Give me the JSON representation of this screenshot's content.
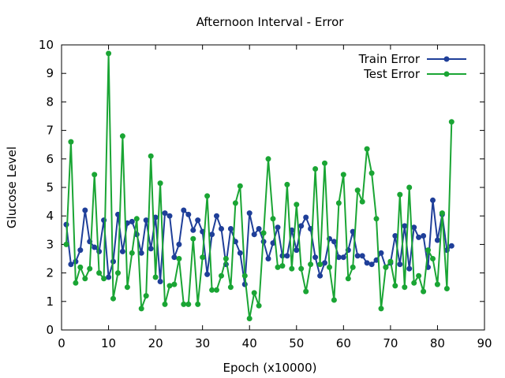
{
  "chart_data": {
    "type": "line",
    "title": "Afternoon Interval - Error",
    "xlabel": "Epoch (x10000)",
    "ylabel": "Glucose Level",
    "xlim": [
      0,
      90
    ],
    "ylim": [
      0,
      10
    ],
    "xticks": [
      0,
      10,
      20,
      30,
      40,
      50,
      60,
      70,
      80,
      90
    ],
    "yticks": [
      0,
      1,
      2,
      3,
      4,
      5,
      6,
      7,
      8,
      9,
      10
    ],
    "grid": false,
    "legend": "top-right",
    "series": [
      {
        "name": "Train Error",
        "color": "#1f3f99",
        "x": [
          1,
          2,
          3,
          4,
          5,
          6,
          7,
          8,
          9,
          10,
          11,
          12,
          13,
          14,
          15,
          16,
          17,
          18,
          19,
          20,
          21,
          22,
          23,
          24,
          25,
          26,
          27,
          28,
          29,
          30,
          31,
          32,
          33,
          34,
          35,
          36,
          37,
          38,
          39,
          40,
          41,
          42,
          43,
          44,
          45,
          46,
          47,
          48,
          49,
          50,
          51,
          52,
          53,
          54,
          55,
          56,
          57,
          58,
          59,
          60,
          61,
          62,
          63,
          64,
          65,
          66,
          67,
          68,
          69,
          70,
          71,
          72,
          73,
          74,
          75,
          76,
          77,
          78,
          79,
          80,
          81,
          82,
          83
        ],
        "y": [
          3.7,
          2.3,
          2.4,
          2.8,
          4.2,
          3.1,
          2.9,
          2.75,
          3.85,
          1.85,
          2.4,
          4.05,
          2.75,
          3.75,
          3.8,
          3.35,
          2.7,
          3.85,
          2.85,
          3.95,
          1.7,
          4.1,
          4.0,
          2.55,
          3.0,
          4.2,
          4.05,
          3.5,
          3.85,
          3.45,
          1.95,
          3.35,
          4.0,
          3.55,
          2.3,
          3.55,
          3.1,
          2.7,
          1.6,
          4.1,
          3.35,
          3.55,
          3.1,
          2.5,
          3.05,
          3.6,
          2.6,
          2.6,
          3.5,
          2.8,
          3.65,
          3.95,
          3.55,
          2.55,
          1.9,
          2.35,
          3.2,
          3.1,
          2.55,
          2.55,
          2.8,
          3.45,
          2.6,
          2.6,
          2.35,
          2.3,
          2.45,
          2.7,
          2.2,
          2.35,
          3.3,
          2.3,
          3.65,
          2.15,
          3.6,
          3.25,
          3.3,
          2.2,
          4.55,
          3.15,
          4.05,
          2.8,
          2.95
        ]
      },
      {
        "name": "Test Error",
        "color": "#1aa534",
        "x": [
          1,
          2,
          3,
          4,
          5,
          6,
          7,
          8,
          9,
          10,
          11,
          12,
          13,
          14,
          15,
          16,
          17,
          18,
          19,
          20,
          21,
          22,
          23,
          24,
          25,
          26,
          27,
          28,
          29,
          30,
          31,
          32,
          33,
          34,
          35,
          36,
          37,
          38,
          39,
          40,
          41,
          42,
          43,
          44,
          45,
          46,
          47,
          48,
          49,
          50,
          51,
          52,
          53,
          54,
          55,
          56,
          57,
          58,
          59,
          60,
          61,
          62,
          63,
          64,
          65,
          66,
          67,
          68,
          69,
          70,
          71,
          72,
          73,
          74,
          75,
          76,
          77,
          78,
          79,
          80,
          81,
          82,
          83
        ],
        "y": [
          3.0,
          6.6,
          1.65,
          2.2,
          1.8,
          2.15,
          5.45,
          2.0,
          1.8,
          9.7,
          1.1,
          2.0,
          6.8,
          1.5,
          2.7,
          3.9,
          0.75,
          1.2,
          6.1,
          1.85,
          5.15,
          0.9,
          1.55,
          1.6,
          2.5,
          0.9,
          0.9,
          3.2,
          0.9,
          2.55,
          4.7,
          1.4,
          1.4,
          1.9,
          2.5,
          1.5,
          4.45,
          5.05,
          1.9,
          0.4,
          1.3,
          0.85,
          3.4,
          6.0,
          3.9,
          2.2,
          2.25,
          5.1,
          2.15,
          4.4,
          2.15,
          1.35,
          2.3,
          5.65,
          2.3,
          5.85,
          2.2,
          1.05,
          4.45,
          5.45,
          1.8,
          2.2,
          4.9,
          4.5,
          6.35,
          5.5,
          3.9,
          0.75,
          2.2,
          2.4,
          1.55,
          4.75,
          1.5,
          5.0,
          1.65,
          1.9,
          1.35,
          2.8,
          2.5,
          1.6,
          4.1,
          1.45,
          7.3
        ]
      }
    ]
  }
}
